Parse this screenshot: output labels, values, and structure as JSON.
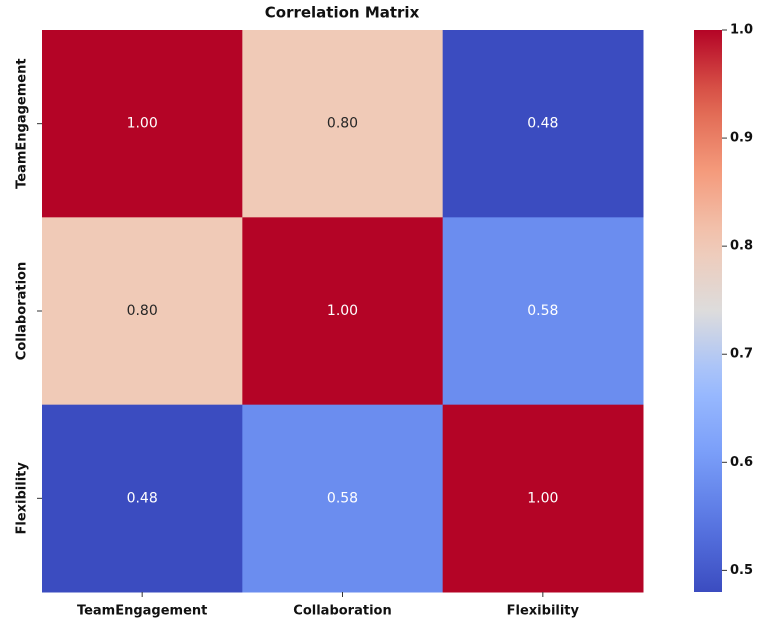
{
  "chart_data": {
    "type": "heatmap",
    "title": "Correlation Matrix",
    "x_categories": [
      "TeamEngagement",
      "Collaboration",
      "Flexibility"
    ],
    "y_categories": [
      "TeamEngagement",
      "Collaboration",
      "Flexibility"
    ],
    "values": [
      [
        1.0,
        0.8,
        0.48
      ],
      [
        0.8,
        1.0,
        0.58
      ],
      [
        0.48,
        0.58,
        1.0
      ]
    ],
    "value_labels": [
      [
        "1.00",
        "0.80",
        "0.48"
      ],
      [
        "0.80",
        "1.00",
        "0.58"
      ],
      [
        "0.48",
        "0.58",
        "1.00"
      ]
    ],
    "colormap": "coolwarm",
    "zlim": [
      0.48,
      1.0
    ],
    "zticks": [
      0.5,
      0.6,
      0.7,
      0.8,
      0.9,
      {
        "value": 1.0,
        "label": "1.0"
      }
    ]
  }
}
